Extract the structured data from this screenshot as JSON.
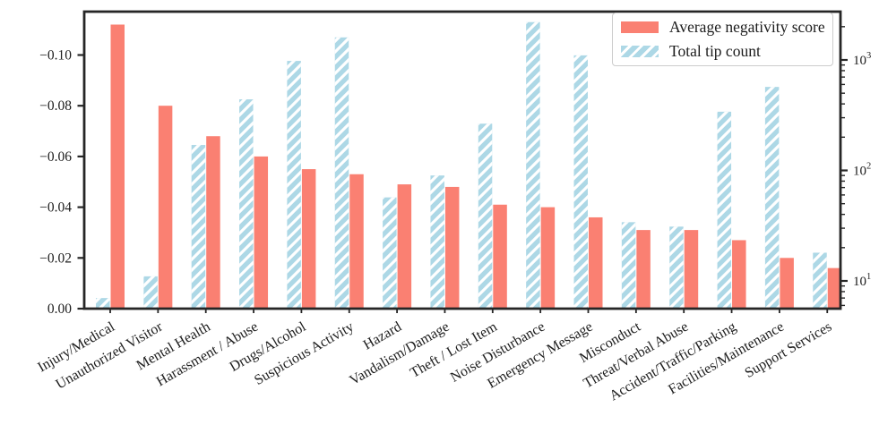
{
  "chart_data": {
    "type": "bar",
    "title": "",
    "categories": [
      "Injury/Medical",
      "Unauthorized Visitor",
      "Mental Health",
      "Harassment / Abuse",
      "Drugs/Alcohol",
      "Suspicious Activity",
      "Hazard",
      "Vandalism/Damage",
      "Theft / Lost Item",
      "Noise Disturbance",
      "Emergency Message",
      "Misconduct",
      "Threat/Verbal Abuse",
      "Accident/Traffic/Parking",
      "Facilities/Maintenance",
      "Support Services"
    ],
    "series": [
      {
        "name": "Average negativity score",
        "axis": "left",
        "color": "#FA8072",
        "hatch": "none",
        "values": [
          -0.112,
          -0.08,
          -0.068,
          -0.06,
          -0.055,
          -0.053,
          -0.049,
          -0.048,
          -0.041,
          -0.04,
          -0.036,
          -0.031,
          -0.031,
          -0.027,
          -0.02,
          -0.016
        ]
      },
      {
        "name": "Total tip count",
        "axis": "right",
        "color": "#ADD8E6",
        "hatch": "//",
        "values": [
          7,
          11,
          170,
          440,
          980,
          1600,
          57,
          90,
          265,
          2200,
          1100,
          34,
          31,
          340,
          570,
          18
        ]
      }
    ],
    "left_axis": {
      "tick_labels": [
        "0.00",
        "−0.02",
        "−0.04",
        "−0.06",
        "−0.08",
        "−0.10"
      ],
      "tick_values": [
        0,
        -0.02,
        -0.04,
        -0.06,
        -0.08,
        -0.1
      ],
      "range_bottom_to_top": [
        0.0,
        -0.117
      ],
      "direction": "negative values increase upward"
    },
    "right_axis": {
      "scale": "log",
      "tick_labels": [
        "10¹",
        "10²",
        "10³"
      ],
      "tick_values": [
        10,
        100,
        1000
      ],
      "range": [
        5.6,
        2800
      ]
    },
    "legend": {
      "position": "upper right",
      "entries": [
        "Average negativity score",
        "Total tip count"
      ]
    },
    "x_tick_rotation_deg": 30,
    "grid": false
  },
  "colors": {
    "negativity_bar": "#FA8072",
    "tip_count_bar": "#ADD8E6",
    "hatch": "#ffffff",
    "spine": "#262626",
    "text": "#1c1c1c",
    "legend_border": "#cccccc"
  }
}
